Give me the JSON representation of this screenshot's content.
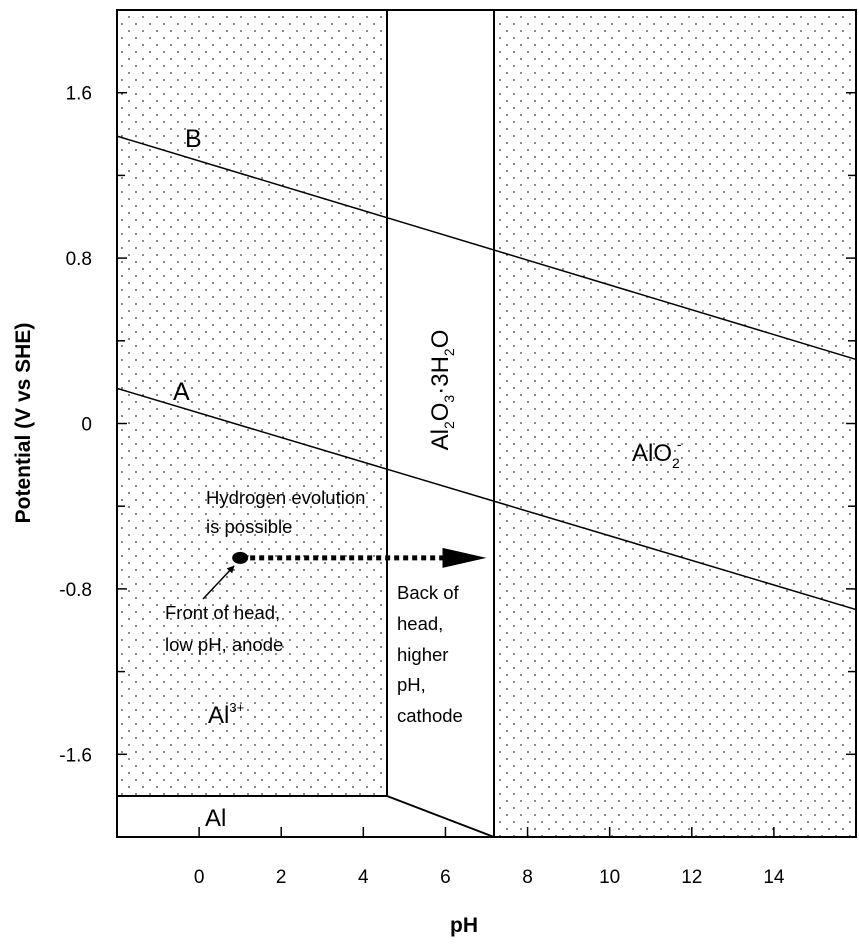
{
  "diagram": {
    "type": "pourbaix",
    "xlabel": "pH",
    "ylabel": "Potential (V vs SHE)",
    "x_ticks": [
      "0",
      "2",
      "4",
      "6",
      "8",
      "10",
      "12",
      "14"
    ],
    "y_ticks": [
      "1.6",
      "0.8",
      "0",
      "-0.8",
      "-1.6"
    ],
    "x_range": [
      -2,
      16
    ],
    "y_range": [
      -2.0,
      2.0
    ],
    "x_tick_values": [
      0,
      2,
      4,
      6,
      8,
      10,
      12,
      14
    ],
    "y_tick_values": [
      1.6,
      0.8,
      0,
      -0.8,
      -1.6
    ],
    "regions": {
      "al3": {
        "base": "Al",
        "sup": "3+"
      },
      "oxide": {
        "parts": [
          "Al",
          "2",
          "O",
          "3",
          "·3H",
          "2",
          "O"
        ]
      },
      "aluminate": {
        "base": "AlO",
        "sub": "2",
        "sup": "-"
      },
      "metal": {
        "label": "Al"
      }
    },
    "lines": {
      "a": {
        "label": "A",
        "points": [
          [
            -2,
            0.17
          ],
          [
            16,
            -0.9
          ]
        ]
      },
      "b": {
        "label": "B",
        "points": [
          [
            -2,
            1.39
          ],
          [
            16,
            0.31
          ]
        ]
      }
    },
    "boundaries": {
      "al3_oxide_pH": 4.5,
      "oxide_aluminate_pH": 7.2,
      "al_al3_potential": -1.8
    },
    "annotations": {
      "hydrogen": [
        "Hydrogen evolution",
        "is possible"
      ],
      "front": [
        "Front of head,",
        "low pH, anode"
      ],
      "back": [
        "Back of",
        "head,",
        "higher",
        "pH,",
        "cathode"
      ]
    },
    "dot": {
      "pH": 1.0,
      "potential": -0.65
    },
    "arrow_end_pH": 7.0
  }
}
